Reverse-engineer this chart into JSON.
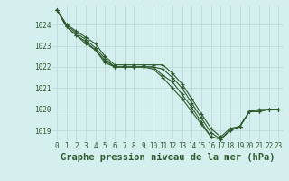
{
  "title": "Graphe pression niveau de la mer (hPa)",
  "bg_color": "#d5efef",
  "grid_color": "#b8d8d8",
  "line_color": "#2d5a2d",
  "x_ticks": [
    0,
    1,
    2,
    3,
    4,
    5,
    6,
    7,
    8,
    9,
    10,
    11,
    12,
    13,
    14,
    15,
    16,
    17,
    18,
    19,
    20,
    21,
    22,
    23
  ],
  "ylim": [
    1018.5,
    1024.9
  ],
  "yticks": [
    1019,
    1020,
    1021,
    1022,
    1023,
    1024
  ],
  "lines": [
    [
      1024.7,
      1024.0,
      1023.7,
      1023.4,
      1023.1,
      1022.5,
      1022.1,
      1022.1,
      1022.1,
      1022.1,
      1022.1,
      1022.1,
      1021.7,
      1021.2,
      1020.5,
      1019.8,
      1019.1,
      1018.7,
      1019.1,
      1019.2,
      1019.9,
      1020.0,
      1020.0,
      1020.0
    ],
    [
      1024.7,
      1024.0,
      1023.6,
      1023.3,
      1022.9,
      1022.4,
      1022.0,
      1022.0,
      1022.0,
      1022.0,
      1022.0,
      1021.9,
      1021.5,
      1021.0,
      1020.3,
      1019.6,
      1018.9,
      1018.6,
      1019.0,
      1019.2,
      1019.9,
      1019.9,
      1020.0,
      1020.0
    ],
    [
      1024.7,
      1023.9,
      1023.5,
      1023.2,
      1022.8,
      1022.3,
      1022.0,
      1022.0,
      1022.0,
      1022.0,
      1022.0,
      1021.6,
      1021.3,
      1020.7,
      1020.1,
      1019.4,
      1018.7,
      1018.6,
      1019.0,
      1019.2,
      1019.9,
      1019.9,
      1020.0,
      1020.0
    ],
    [
      1024.7,
      1023.9,
      1023.5,
      1023.1,
      1022.8,
      1022.2,
      1022.0,
      1022.0,
      1022.0,
      1022.0,
      1021.9,
      1021.5,
      1021.0,
      1020.5,
      1019.9,
      1019.3,
      1018.7,
      1018.6,
      1019.0,
      1019.2,
      1019.9,
      1019.9,
      1020.0,
      1020.0
    ]
  ],
  "marker": "+",
  "marker_size": 3.5,
  "line_width": 0.8,
  "title_fontsize": 7.5,
  "tick_fontsize": 5.5,
  "xlabel_color": "#2d5a2d"
}
